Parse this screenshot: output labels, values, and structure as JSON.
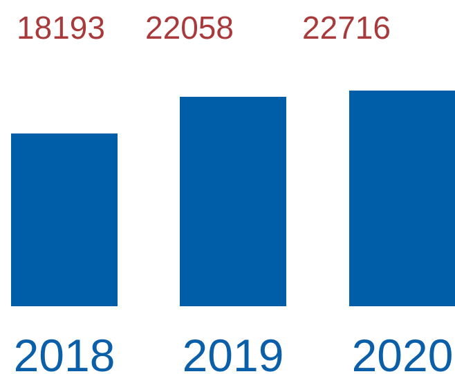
{
  "chart_data": {
    "type": "bar",
    "categories": [
      "2018",
      "2019",
      "2020"
    ],
    "values": [
      18193,
      22058,
      22716
    ],
    "value_labels": [
      "18193",
      "22058",
      "22716"
    ],
    "title": "",
    "xlabel": "",
    "ylabel": "",
    "grid": false,
    "legend": "none",
    "colors": {
      "bar": "#005da8",
      "value_label": "#a83a3c",
      "category_label": "#0b5fa8",
      "background": "#ffffff"
    }
  }
}
